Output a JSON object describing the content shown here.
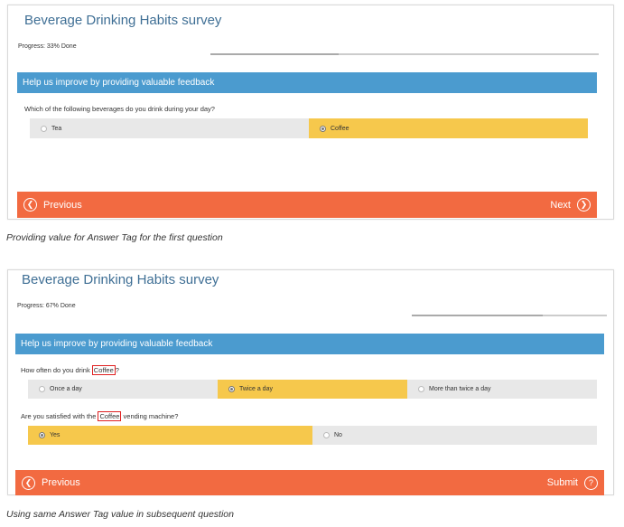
{
  "colors": {
    "banner": "#4b9bcf",
    "navbar": "#f26a41",
    "selected_option": "#f6c84c",
    "option": "#e8e8e8",
    "title": "#3f6f95",
    "highlight_box": "#e02020"
  },
  "panel1": {
    "title": "Beverage Drinking Habits survey",
    "progress_text": "Progress: 33% Done",
    "progress_value": 0.33,
    "banner": "Help us improve by providing valuable feedback",
    "question": "Which of the following beverages do you drink during your day?",
    "options": [
      {
        "label": "Tea",
        "selected": false
      },
      {
        "label": "Coffee",
        "selected": true
      }
    ],
    "previous_label": "Previous",
    "next_label": "Next",
    "previous_icon": "chevron-left-circle-icon",
    "next_icon": "chevron-right-circle-icon"
  },
  "caption1": "Providing value for Answer Tag for the first question",
  "panel2": {
    "title": "Beverage Drinking Habits survey",
    "progress_text": "Progress: 67% Done",
    "progress_value": 0.67,
    "banner": "Help us improve by providing valuable feedback",
    "question1": {
      "before": "How often do you drink ",
      "tag": "Coffee",
      "after": "?"
    },
    "question1_options": [
      {
        "label": "Once a day",
        "selected": false
      },
      {
        "label": "Twice a day",
        "selected": true
      },
      {
        "label": "More than twice a day",
        "selected": false
      }
    ],
    "question2": {
      "before": "Are you satisfied with the ",
      "tag": "Coffee",
      "after": " vending machine?"
    },
    "question2_options": [
      {
        "label": "Yes",
        "selected": true
      },
      {
        "label": "No",
        "selected": false
      }
    ],
    "previous_label": "Previous",
    "submit_label": "Submit",
    "previous_icon": "chevron-left-circle-icon",
    "submit_icon": "question-circle-icon"
  },
  "caption2": "Using same Answer Tag value in subsequent question"
}
